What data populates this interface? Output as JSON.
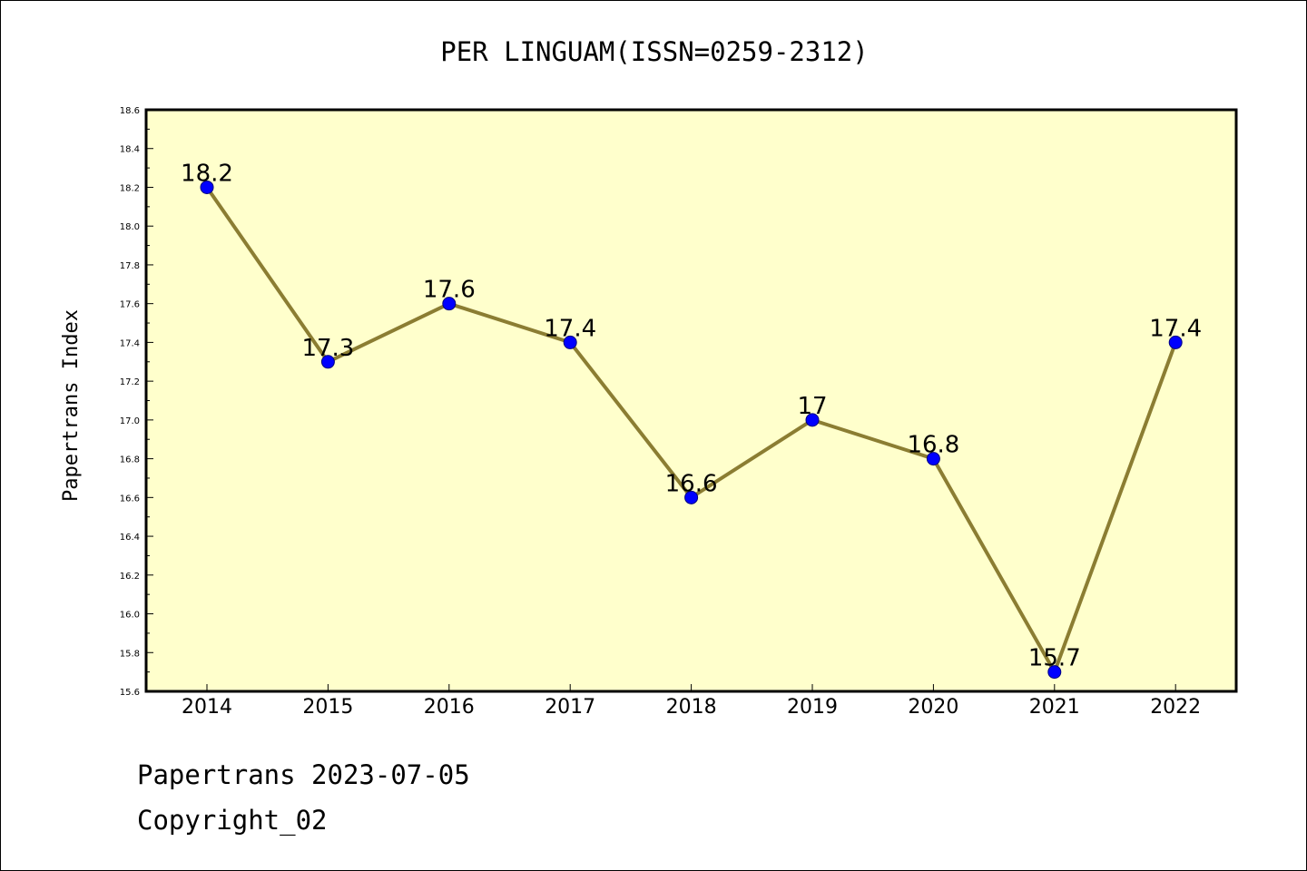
{
  "footer": {
    "date_line": "Papertrans 2023-07-05",
    "copyright_line": "Copyright_02"
  },
  "colors": {
    "plot_background": "#ffffcc",
    "line": "#8b7d32",
    "marker_fill": "#0000ff",
    "marker_edge": "#000080",
    "frame": "#000000"
  },
  "chart_data": {
    "type": "line",
    "title": "PER LINGUAM(ISSN=0259-2312)",
    "xlabel": "",
    "ylabel": "Papertrans Index",
    "categories": [
      "2014",
      "2015",
      "2016",
      "2017",
      "2018",
      "2019",
      "2020",
      "2021",
      "2022"
    ],
    "series": [
      {
        "name": "Papertrans Index",
        "values": [
          18.2,
          17.3,
          17.6,
          17.4,
          16.6,
          17.0,
          16.8,
          15.7,
          17.4
        ],
        "labels": [
          "18.2",
          "17.3",
          "17.6",
          "17.4",
          "16.6",
          "17",
          "16.8",
          "15.7",
          "17.4"
        ]
      }
    ],
    "ylim": [
      15.6,
      18.6
    ],
    "yticks": [
      "15.6",
      "15.8",
      "16.0",
      "16.2",
      "16.4",
      "16.6",
      "16.8",
      "17.0",
      "17.2",
      "17.4",
      "17.6",
      "17.8",
      "18.0",
      "18.2",
      "18.4",
      "18.6"
    ],
    "ytick_step": 0.2,
    "grid": false,
    "legend": "none"
  }
}
